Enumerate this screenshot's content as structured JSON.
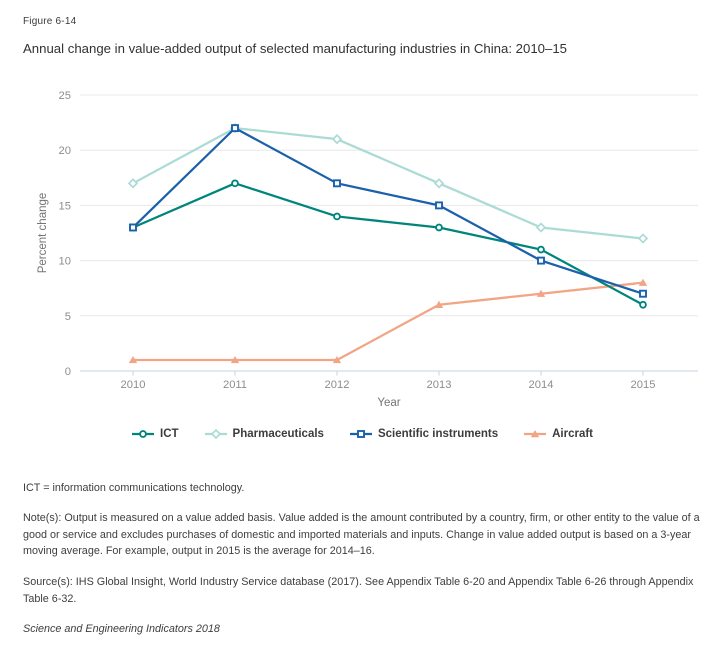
{
  "figure": {
    "label": "Figure 6-14",
    "title": "Annual change in value-added output of selected manufacturing industries in China: 2010–15"
  },
  "chart_data": {
    "type": "line",
    "title": "Annual change in value-added output of selected manufacturing industries in China: 2010–15",
    "xlabel": "Year",
    "ylabel": "Percent change",
    "ylim": [
      0,
      25
    ],
    "ytick_step": 5,
    "grid": "horizontal",
    "legend_position": "bottom",
    "categories": [
      "2010",
      "2011",
      "2012",
      "2013",
      "2014",
      "2015"
    ],
    "series": [
      {
        "name": "ICT",
        "marker": "circle",
        "color": "#00857c",
        "values": [
          13,
          17,
          14,
          13,
          11,
          6
        ]
      },
      {
        "name": "Pharmaceuticals",
        "marker": "diamond",
        "color": "#abdbd5",
        "values": [
          17,
          22,
          21,
          17,
          13,
          12
        ]
      },
      {
        "name": "Scientific instruments",
        "marker": "square",
        "color": "#1a60ab",
        "values": [
          13,
          22,
          17,
          15,
          10,
          7
        ]
      },
      {
        "name": "Aircraft",
        "marker": "triangle",
        "color": "#f2a584",
        "values": [
          1,
          1,
          1,
          6,
          7,
          8
        ]
      }
    ],
    "grid_color": "#e8e8e8",
    "axis_color": "#c9d3e0",
    "tick_label_color": "#8e8e8e",
    "axis_title_color": "#757575"
  },
  "footnotes": {
    "abbreviation": "ICT = information communications technology.",
    "note": "Note(s): Output is measured on a value added basis. Value added is the amount contributed by a country, firm, or other entity to the value of a good or service and excludes purchases of domestic and imported materials and inputs. Change in value added output is based on a 3-year moving average. For example, output in 2015 is the average for 2014–16.",
    "source": "Source(s): IHS Global Insight, World Industry Service database (2017). See Appendix Table 6-20 and Appendix Table 6-26 through Appendix Table 6-32.",
    "attribution": "Science and Engineering Indicators 2018"
  }
}
